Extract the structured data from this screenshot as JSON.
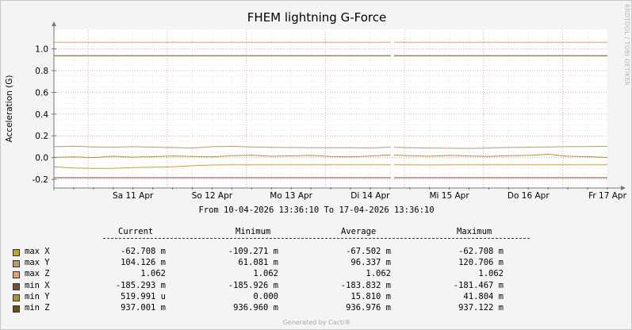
{
  "chart_data": {
    "type": "line",
    "title": "FHEM lightning G-Force",
    "ylabel": "Acceleration (G)",
    "watermark": "RRDTOOL / TOBI OETIKER",
    "time_range_text": "From 10-04-2026 13:36:10 To 17-04-2026 13:36:10",
    "y_ticks": [
      "1.0",
      "0.8",
      "0.6",
      "0.4",
      "0.2",
      "0.0",
      "-0.2"
    ],
    "y_tick_values": [
      1.0,
      0.8,
      0.6,
      0.4,
      0.2,
      0.0,
      -0.2
    ],
    "ylim": [
      -0.28,
      1.18
    ],
    "x_ticks": [
      "Sa 11 Apr",
      "So 12 Apr",
      "Mo 13 Apr",
      "Di 14 Apr",
      "Mi 15 Apr",
      "Do 16 Apr",
      "Fr 17 Apr"
    ],
    "x_tick_days": [
      1,
      2,
      3,
      4,
      5,
      6,
      7
    ],
    "xlim_days": [
      0,
      7
    ],
    "gap_days": [
      4.26,
      4.3
    ],
    "grid": true,
    "series": [
      {
        "name": "max X",
        "color": "#c8a22d",
        "last": "-62.708 m",
        "minimum": "-109.271 m",
        "average": "-67.502 m",
        "maximum": "-62.708 m",
        "values": [
          -0.085,
          -0.095,
          -0.1,
          -0.098,
          -0.092,
          -0.088,
          -0.085,
          -0.075,
          -0.068,
          -0.066,
          -0.066,
          -0.066,
          -0.066,
          -0.066,
          -0.066,
          -0.066,
          -0.066,
          -0.066,
          -0.066,
          -0.068,
          -0.066,
          -0.066,
          -0.066,
          -0.066,
          -0.066,
          -0.066,
          -0.066,
          -0.066,
          -0.066
        ]
      },
      {
        "name": "max Y",
        "color": "#b89a78",
        "last": "104.126 m",
        "minimum": "61.081 m",
        "average": "96.337 m",
        "maximum": "120.706 m",
        "values": [
          0.1,
          0.105,
          0.098,
          0.095,
          0.1,
          0.096,
          0.092,
          0.088,
          0.1,
          0.104,
          0.098,
          0.094,
          0.092,
          0.09,
          0.09,
          0.09,
          0.088,
          0.096,
          0.09,
          0.088,
          0.086,
          0.084,
          0.088,
          0.093,
          0.095,
          0.098,
          0.1,
          0.102,
          0.104
        ]
      },
      {
        "name": "max Z",
        "color": "#e0a070",
        "last": "1.062",
        "minimum": "1.062",
        "average": "1.062",
        "maximum": "1.062",
        "values": [
          1.062,
          1.062,
          1.062,
          1.062,
          1.062,
          1.062,
          1.062,
          1.062,
          1.062,
          1.062,
          1.062,
          1.062,
          1.062,
          1.062,
          1.062,
          1.062,
          1.062,
          1.062,
          1.062,
          1.062,
          1.062,
          1.062,
          1.062,
          1.062,
          1.062,
          1.062,
          1.062,
          1.062,
          1.062
        ]
      },
      {
        "name": "min X",
        "color": "#7a4e36",
        "last": "-185.293 m",
        "minimum": "-185.926 m",
        "average": "-183.832 m",
        "maximum": "-181.467 m",
        "values": [
          -0.185,
          -0.185,
          -0.185,
          -0.185,
          -0.185,
          -0.185,
          -0.185,
          -0.185,
          -0.185,
          -0.185,
          -0.185,
          -0.185,
          -0.185,
          -0.185,
          -0.185,
          -0.185,
          -0.185,
          -0.185,
          -0.185,
          -0.185,
          -0.185,
          -0.185,
          -0.185,
          -0.185,
          -0.185,
          -0.185,
          -0.185,
          -0.185,
          -0.185
        ]
      },
      {
        "name": "min Y",
        "color": "#a89434",
        "last": "519.991 u",
        "minimum": "0.000",
        "average": "15.810 m",
        "maximum": "41.804 m",
        "values": [
          0.002,
          0.006,
          0.0,
          0.012,
          0.004,
          0.008,
          0.015,
          0.01,
          0.006,
          0.018,
          0.022,
          0.012,
          0.016,
          0.02,
          0.01,
          0.006,
          0.014,
          0.025,
          0.018,
          0.012,
          0.02,
          0.015,
          0.01,
          0.018,
          0.02,
          0.03,
          0.012,
          0.008,
          0.001
        ]
      },
      {
        "name": "min Z",
        "color": "#6e4e16",
        "last": "937.001 m",
        "minimum": "936.960 m",
        "average": "936.976 m",
        "maximum": "937.122 m",
        "values": [
          0.937,
          0.937,
          0.937,
          0.937,
          0.937,
          0.937,
          0.937,
          0.937,
          0.937,
          0.937,
          0.937,
          0.937,
          0.937,
          0.937,
          0.937,
          0.937,
          0.937,
          0.937,
          0.937,
          0.937,
          0.937,
          0.937,
          0.937,
          0.937,
          0.937,
          0.937,
          0.937,
          0.937,
          0.937
        ]
      }
    ]
  },
  "legend": {
    "col_current": "Current",
    "col_minimum": "Minimum",
    "col_average": "Average",
    "col_maximum": "Maximum"
  },
  "footer": "Generated by Cacti®"
}
